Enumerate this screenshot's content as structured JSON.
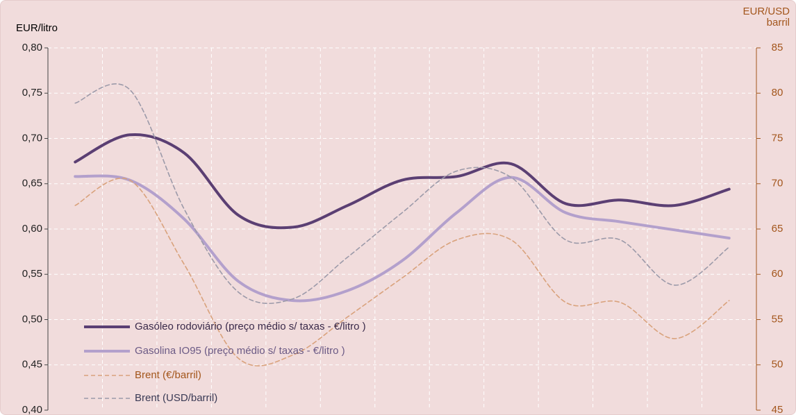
{
  "chart_data": {
    "type": "line",
    "y_label": "EUR/litro",
    "y2_label": "EUR/USD barril",
    "categories": [
      null,
      null,
      null,
      null,
      null,
      null,
      null,
      null,
      null,
      null,
      null,
      null,
      null
    ],
    "series": [
      {
        "name": "Gasóleo rodoviário (preço médio s/ taxas - €/litro )",
        "color": "#5b3f73",
        "dashed": false,
        "axis": "y",
        "values": [
          0.674,
          0.704,
          0.684,
          0.615,
          0.602,
          0.626,
          0.654,
          0.658,
          0.672,
          0.628,
          0.632,
          0.626,
          0.644
        ]
      },
      {
        "name": "Gasolina IO95 (preço médio s/ taxas - €/litro )",
        "color": "#b3a0cc",
        "dashed": false,
        "axis": "y",
        "values": [
          0.658,
          0.654,
          0.611,
          0.542,
          0.521,
          0.532,
          0.565,
          0.618,
          0.657,
          0.618,
          0.608,
          0.599,
          0.59
        ]
      },
      {
        "name": "Brent (€/barril)",
        "color": "#d9a27c",
        "dashed": true,
        "axis": "y2",
        "values": [
          67.6,
          70.4,
          61.1,
          50.7,
          51.1,
          55.3,
          59.6,
          63.8,
          63.8,
          56.9,
          56.9,
          52.9,
          57.1
        ]
      },
      {
        "name": "Brent (USD/barril)",
        "color": "#9c9aa9",
        "dashed": true,
        "axis": "y2",
        "values": [
          78.9,
          80.4,
          67.2,
          58.0,
          57.3,
          61.9,
          66.8,
          71.4,
          70.7,
          63.8,
          63.8,
          58.8,
          63.0
        ]
      }
    ],
    "ylim": [
      0.4,
      0.8
    ],
    "yticks": [
      {
        "value": 0.4,
        "label": "0,40"
      },
      {
        "value": 0.45,
        "label": "0,45"
      },
      {
        "value": 0.5,
        "label": "0,50"
      },
      {
        "value": 0.55,
        "label": "0,55"
      },
      {
        "value": 0.6,
        "label": "0,60"
      },
      {
        "value": 0.65,
        "label": "0,65"
      },
      {
        "value": 0.7,
        "label": "0,70"
      },
      {
        "value": 0.75,
        "label": "0,75"
      },
      {
        "value": 0.8,
        "label": "0,80"
      }
    ],
    "y2lim": [
      45,
      85
    ],
    "y2ticks": [
      45,
      50,
      55,
      60,
      65,
      70,
      75,
      80,
      85
    ],
    "grid": true,
    "legend": "lower left"
  }
}
